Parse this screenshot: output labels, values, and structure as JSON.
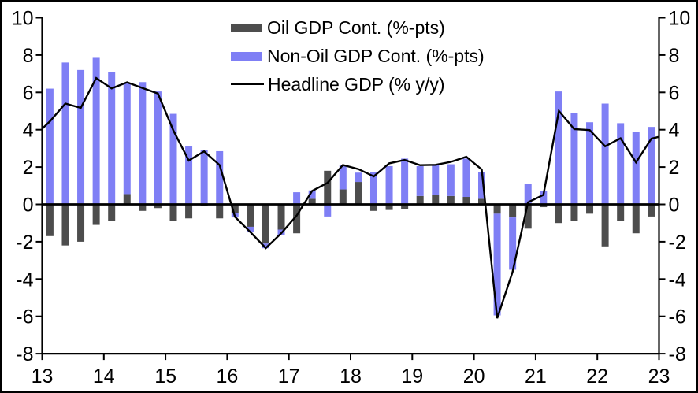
{
  "chart_data": {
    "type": "bar",
    "subtype": "stacked-bars-with-line-overlay",
    "title": "",
    "stacked": true,
    "grid": false,
    "legend_position": "top-center",
    "ylim": [
      -8,
      10
    ],
    "y_ticks": [
      10,
      8,
      6,
      4,
      2,
      0,
      -2,
      -4,
      -6,
      -8
    ],
    "y_tick_labels": [
      "10",
      "8",
      "6",
      "4",
      "2",
      "0",
      "-2",
      "-4",
      "-6",
      "-8"
    ],
    "x_tick_labels": [
      "13",
      "14",
      "15",
      "16",
      "17",
      "18",
      "19",
      "20",
      "21",
      "22",
      "23"
    ],
    "categories": [
      "2013Q1",
      "2013Q2",
      "2013Q3",
      "2013Q4",
      "2014Q1",
      "2014Q2",
      "2014Q3",
      "2014Q4",
      "2015Q1",
      "2015Q2",
      "2015Q3",
      "2015Q4",
      "2016Q1",
      "2016Q2",
      "2016Q3",
      "2016Q4",
      "2017Q1",
      "2017Q2",
      "2017Q3",
      "2017Q4",
      "2018Q1",
      "2018Q2",
      "2018Q3",
      "2018Q4",
      "2019Q1",
      "2019Q2",
      "2019Q3",
      "2019Q4",
      "2020Q1",
      "2020Q2",
      "2020Q3",
      "2020Q4",
      "2021Q1",
      "2021Q2",
      "2021Q3",
      "2021Q4",
      "2022Q1",
      "2022Q2",
      "2022Q3",
      "2022Q4"
    ],
    "legend": [
      {
        "label": "Oil GDP Cont. (%-pts)",
        "color": "#4d4d4d",
        "swatch": "bar"
      },
      {
        "label": "Non-Oil GDP Cont. (%-pts)",
        "color": "#7f7ff5",
        "swatch": "bar"
      },
      {
        "label": "Headline GDP (% y/y)",
        "color": "#000000",
        "swatch": "line"
      }
    ],
    "series": [
      {
        "name": "Oil GDP Cont. (%-pts)",
        "type": "bar",
        "color": "#4d4d4d",
        "values": [
          -1.7,
          -2.2,
          -2.0,
          -1.1,
          -0.9,
          0.55,
          -0.35,
          -0.2,
          -0.9,
          -0.75,
          -0.1,
          -0.75,
          -0.45,
          -1.2,
          -2.1,
          -1.35,
          -1.55,
          0.3,
          1.8,
          0.8,
          1.2,
          -0.35,
          -0.3,
          -0.25,
          0.45,
          0.5,
          0.45,
          0.4,
          0.3,
          -0.5,
          -0.7,
          -1.3,
          -0.15,
          -1.0,
          -0.9,
          -0.5,
          -2.25,
          -0.9,
          -1.55,
          -0.65
        ]
      },
      {
        "name": "Non-Oil GDP Cont. (%-pts)",
        "type": "bar",
        "color": "#7f7ff5",
        "values": [
          6.2,
          7.6,
          7.2,
          7.85,
          7.1,
          5.95,
          6.55,
          6.05,
          4.85,
          3.1,
          2.9,
          2.85,
          -0.25,
          -0.3,
          -0.25,
          -0.3,
          0.65,
          0.45,
          -0.65,
          1.3,
          0.5,
          1.75,
          2.05,
          2.45,
          1.6,
          1.6,
          1.7,
          2.05,
          1.45,
          -5.45,
          -2.8,
          1.1,
          0.7,
          6.05,
          4.9,
          4.4,
          5.4,
          4.35,
          3.9,
          4.15
        ]
      },
      {
        "name": "Headline GDP (% y/y)",
        "type": "line",
        "color": "#000000",
        "values": [
          4.45,
          5.4,
          5.17,
          6.77,
          6.21,
          6.54,
          6.23,
          5.94,
          3.96,
          2.35,
          2.84,
          2.11,
          -0.67,
          -1.49,
          -2.34,
          -1.55,
          -0.6,
          0.72,
          1.15,
          2.11,
          1.89,
          1.5,
          2.2,
          2.38,
          2.1,
          2.12,
          2.28,
          2.55,
          1.87,
          -6.1,
          -3.62,
          0.11,
          0.51,
          5.01,
          4.03,
          3.98,
          3.11,
          3.54,
          2.25,
          3.52
        ],
        "edge_start": 4.05,
        "edge_end": 3.62
      }
    ]
  }
}
